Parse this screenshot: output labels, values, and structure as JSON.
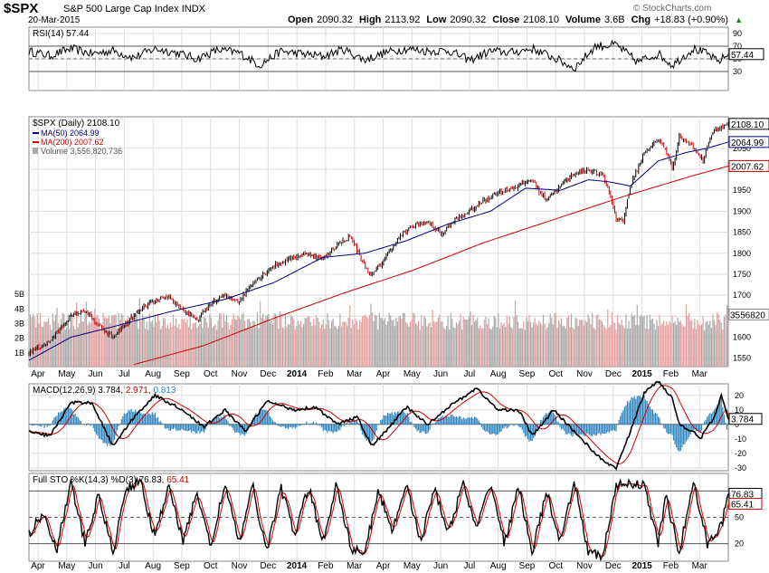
{
  "header": {
    "symbol": "$SPX",
    "name": "S&P 500 Large Cap Index",
    "exchange": "INDX",
    "date": "20-Mar-2015",
    "credit": "© StockCharts.com",
    "open_label": "Open",
    "open": "2090.32",
    "high_label": "High",
    "high": "2113.92",
    "low_label": "Low",
    "low": "2090.32",
    "close_label": "Close",
    "close": "2108.10",
    "volume_label": "Volume",
    "volume": "3.6B",
    "chg_label": "Chg",
    "chg": "+18.83 (+0.90%)",
    "chg_arrow": "▲"
  },
  "colors": {
    "up_bar": "#000000",
    "down_bar": "#cc0000",
    "ma50": "#000080",
    "ma200": "#cc0000",
    "vol_up": "#aaaaaa",
    "vol_down": "#e8a0a0",
    "macd_hist": "#2e86c1",
    "stoch_d": "#cc0000",
    "grid": "#dddddd"
  },
  "chart_data": [
    {
      "type": "line",
      "panel": "RSI",
      "legend": "RSI(14) 57.44",
      "ylim": [
        0,
        100
      ],
      "yticks": [
        30,
        50,
        70,
        90
      ],
      "reference_lines": [
        30,
        70
      ],
      "value_label": "57.44",
      "waypoints": [
        [
          0,
          62
        ],
        [
          0.03,
          55
        ],
        [
          0.06,
          66
        ],
        [
          0.09,
          58
        ],
        [
          0.12,
          63
        ],
        [
          0.15,
          52
        ],
        [
          0.18,
          66
        ],
        [
          0.21,
          60
        ],
        [
          0.24,
          50
        ],
        [
          0.27,
          64
        ],
        [
          0.3,
          60
        ],
        [
          0.33,
          40
        ],
        [
          0.36,
          62
        ],
        [
          0.39,
          58
        ],
        [
          0.42,
          54
        ],
        [
          0.45,
          65
        ],
        [
          0.48,
          48
        ],
        [
          0.51,
          60
        ],
        [
          0.54,
          66
        ],
        [
          0.57,
          62
        ],
        [
          0.6,
          63
        ],
        [
          0.63,
          48
        ],
        [
          0.66,
          62
        ],
        [
          0.69,
          60
        ],
        [
          0.72,
          66
        ],
        [
          0.75,
          52
        ],
        [
          0.78,
          35
        ],
        [
          0.81,
          70
        ],
        [
          0.84,
          72
        ],
        [
          0.87,
          45
        ],
        [
          0.9,
          58
        ],
        [
          0.92,
          40
        ],
        [
          0.95,
          66
        ],
        [
          0.97,
          58
        ],
        [
          0.985,
          45
        ],
        [
          1.0,
          57.44
        ]
      ]
    },
    {
      "type": "candlestick",
      "panel": "Price",
      "legend": [
        "$SPX (Daily) 2108.10",
        "MA(50) 2064.99",
        "MA(200) 2007.62",
        "Volume 3,556,820,736"
      ],
      "x_ticks": [
        "Apr",
        "May",
        "Jun",
        "Jul",
        "Aug",
        "Sep",
        "Oct",
        "Nov",
        "Dec",
        "2014",
        "Feb",
        "Mar",
        "Apr",
        "May",
        "Jun",
        "Jul",
        "Aug",
        "Sep",
        "Oct",
        "Nov",
        "Dec",
        "2015",
        "Feb",
        "Mar"
      ],
      "ylim": [
        1530,
        2125
      ],
      "yticks": [
        1550,
        1600,
        1650,
        1700,
        1750,
        1800,
        1850,
        1900,
        1950,
        2000,
        2050
      ],
      "last_labels": {
        "close": "2108.10",
        "ma50": "2064.99",
        "ma200": "2007.62",
        "volume": "3556820"
      },
      "volume_ticks": [
        "1B",
        "2B",
        "3B",
        "4B",
        "5B"
      ],
      "volume_max": 6,
      "close_waypoints": [
        [
          0,
          1565
        ],
        [
          0.03,
          1590
        ],
        [
          0.06,
          1650
        ],
        [
          0.08,
          1665
        ],
        [
          0.1,
          1625
        ],
        [
          0.12,
          1600
        ],
        [
          0.14,
          1635
        ],
        [
          0.17,
          1680
        ],
        [
          0.2,
          1695
        ],
        [
          0.22,
          1665
        ],
        [
          0.24,
          1640
        ],
        [
          0.26,
          1680
        ],
        [
          0.28,
          1700
        ],
        [
          0.3,
          1685
        ],
        [
          0.32,
          1730
        ],
        [
          0.35,
          1770
        ],
        [
          0.37,
          1785
        ],
        [
          0.4,
          1800
        ],
        [
          0.42,
          1785
        ],
        [
          0.44,
          1820
        ],
        [
          0.46,
          1840
        ],
        [
          0.48,
          1770
        ],
        [
          0.49,
          1745
        ],
        [
          0.51,
          1790
        ],
        [
          0.53,
          1840
        ],
        [
          0.55,
          1865
        ],
        [
          0.57,
          1875
        ],
        [
          0.59,
          1845
        ],
        [
          0.61,
          1880
        ],
        [
          0.63,
          1900
        ],
        [
          0.65,
          1925
        ],
        [
          0.67,
          1945
        ],
        [
          0.7,
          1960
        ],
        [
          0.72,
          1975
        ],
        [
          0.73,
          1945
        ],
        [
          0.74,
          1930
        ],
        [
          0.76,
          1960
        ],
        [
          0.78,
          1990
        ],
        [
          0.8,
          2000
        ],
        [
          0.82,
          1985
        ],
        [
          0.83,
          1945
        ],
        [
          0.84,
          1880
        ],
        [
          0.85,
          1880
        ],
        [
          0.86,
          1960
        ],
        [
          0.88,
          2040
        ],
        [
          0.9,
          2070
        ],
        [
          0.91,
          2050
        ],
        [
          0.92,
          2000
        ],
        [
          0.93,
          2080
        ],
        [
          0.945,
          2060
        ],
        [
          0.955,
          2040
        ],
        [
          0.965,
          2020
        ],
        [
          0.97,
          2060
        ],
        [
          0.98,
          2095
        ],
        [
          0.99,
          2100
        ],
        [
          1.0,
          2108.1
        ]
      ],
      "ma50_waypoints": [
        [
          0,
          1545
        ],
        [
          0.06,
          1600
        ],
        [
          0.12,
          1625
        ],
        [
          0.2,
          1660
        ],
        [
          0.28,
          1690
        ],
        [
          0.35,
          1730
        ],
        [
          0.42,
          1790
        ],
        [
          0.48,
          1800
        ],
        [
          0.54,
          1830
        ],
        [
          0.6,
          1870
        ],
        [
          0.66,
          1900
        ],
        [
          0.71,
          1955
        ],
        [
          0.76,
          1950
        ],
        [
          0.8,
          1975
        ],
        [
          0.83,
          1970
        ],
        [
          0.86,
          1960
        ],
        [
          0.9,
          2020
        ],
        [
          0.94,
          2040
        ],
        [
          0.97,
          2050
        ],
        [
          1.0,
          2064.99
        ]
      ],
      "ma200_waypoints": [
        [
          0.15,
          1535
        ],
        [
          0.25,
          1580
        ],
        [
          0.35,
          1645
        ],
        [
          0.45,
          1705
        ],
        [
          0.55,
          1760
        ],
        [
          0.65,
          1825
        ],
        [
          0.75,
          1880
        ],
        [
          0.85,
          1935
        ],
        [
          0.95,
          1985
        ],
        [
          1.0,
          2007.62
        ]
      ]
    },
    {
      "type": "line",
      "panel": "MACD",
      "legend": {
        "label": "MACD(12,26,9)",
        "macd": "3.784",
        "signal": "2.971",
        "hist": "0.813"
      },
      "ylim": [
        -32,
        28
      ],
      "yticks": [
        -30,
        -20,
        -10,
        0,
        10,
        20
      ],
      "value_label": "3.784",
      "waypoints": [
        [
          0,
          -5
        ],
        [
          0.03,
          -8
        ],
        [
          0.06,
          15
        ],
        [
          0.09,
          15
        ],
        [
          0.12,
          -15
        ],
        [
          0.15,
          5
        ],
        [
          0.18,
          20
        ],
        [
          0.22,
          10
        ],
        [
          0.25,
          -2
        ],
        [
          0.28,
          10
        ],
        [
          0.31,
          -5
        ],
        [
          0.34,
          16
        ],
        [
          0.38,
          10
        ],
        [
          0.41,
          12
        ],
        [
          0.44,
          0
        ],
        [
          0.47,
          5
        ],
        [
          0.49,
          -15
        ],
        [
          0.51,
          -5
        ],
        [
          0.54,
          12
        ],
        [
          0.57,
          0
        ],
        [
          0.6,
          12
        ],
        [
          0.64,
          25
        ],
        [
          0.67,
          10
        ],
        [
          0.7,
          10
        ],
        [
          0.72,
          -8
        ],
        [
          0.75,
          10
        ],
        [
          0.78,
          -5
        ],
        [
          0.8,
          -15
        ],
        [
          0.82,
          -25
        ],
        [
          0.84,
          -30
        ],
        [
          0.86,
          -5
        ],
        [
          0.88,
          22
        ],
        [
          0.9,
          30
        ],
        [
          0.92,
          18
        ],
        [
          0.93,
          0
        ],
        [
          0.95,
          -5
        ],
        [
          0.96,
          -10
        ],
        [
          0.98,
          5
        ],
        [
          0.99,
          20
        ],
        [
          1.0,
          3.784
        ]
      ]
    },
    {
      "type": "line",
      "panel": "Full STO",
      "legend": {
        "label": "Full STO %K(14,3) %D(3)",
        "k": "76.83",
        "d": "65.41"
      },
      "ylim": [
        0,
        100
      ],
      "yticks": [
        20,
        50,
        80
      ],
      "reference_lines": [
        20,
        50,
        80
      ],
      "value_labels": [
        "76.83",
        "65.41"
      ],
      "waypoints": [
        [
          0,
          30
        ],
        [
          0.02,
          55
        ],
        [
          0.04,
          15
        ],
        [
          0.06,
          90
        ],
        [
          0.08,
          20
        ],
        [
          0.1,
          75
        ],
        [
          0.12,
          10
        ],
        [
          0.14,
          85
        ],
        [
          0.16,
          90
        ],
        [
          0.18,
          25
        ],
        [
          0.2,
          90
        ],
        [
          0.22,
          20
        ],
        [
          0.24,
          80
        ],
        [
          0.26,
          15
        ],
        [
          0.28,
          90
        ],
        [
          0.3,
          20
        ],
        [
          0.32,
          85
        ],
        [
          0.34,
          10
        ],
        [
          0.36,
          85
        ],
        [
          0.38,
          30
        ],
        [
          0.4,
          85
        ],
        [
          0.42,
          20
        ],
        [
          0.44,
          90
        ],
        [
          0.46,
          15
        ],
        [
          0.48,
          10
        ],
        [
          0.5,
          80
        ],
        [
          0.52,
          35
        ],
        [
          0.54,
          90
        ],
        [
          0.56,
          20
        ],
        [
          0.58,
          85
        ],
        [
          0.6,
          30
        ],
        [
          0.62,
          90
        ],
        [
          0.64,
          35
        ],
        [
          0.66,
          90
        ],
        [
          0.68,
          20
        ],
        [
          0.7,
          85
        ],
        [
          0.72,
          10
        ],
        [
          0.74,
          80
        ],
        [
          0.76,
          20
        ],
        [
          0.78,
          90
        ],
        [
          0.8,
          10
        ],
        [
          0.82,
          5
        ],
        [
          0.84,
          85
        ],
        [
          0.86,
          90
        ],
        [
          0.88,
          85
        ],
        [
          0.9,
          20
        ],
        [
          0.91,
          75
        ],
        [
          0.93,
          10
        ],
        [
          0.95,
          90
        ],
        [
          0.97,
          20
        ],
        [
          0.99,
          40
        ],
        [
          1.0,
          76.83
        ]
      ]
    }
  ]
}
